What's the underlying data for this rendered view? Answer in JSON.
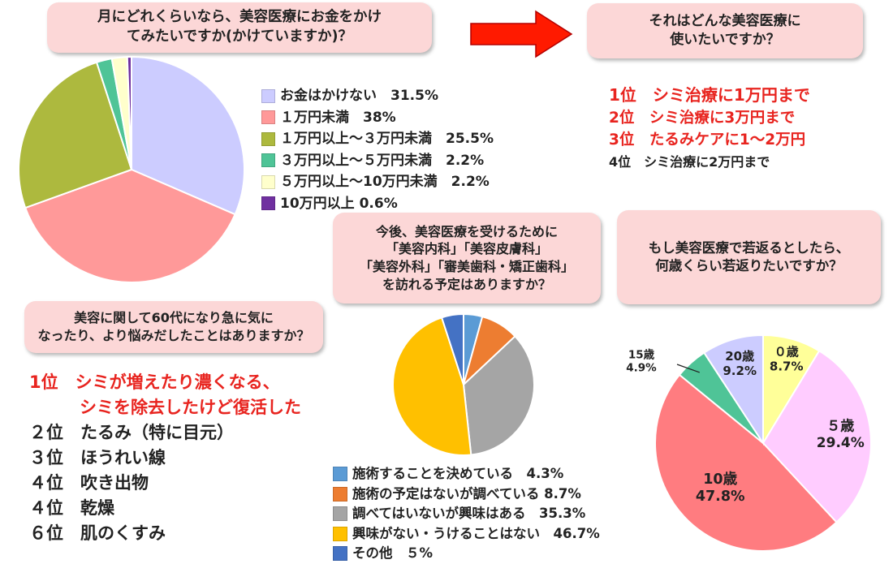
{
  "q1": {
    "question": "月にどれくらいなら、美容医療にお金をかけ\nてみたいですか(かけていますか)？"
  },
  "q2": {
    "question": "それはどんな美容医療に\n使いたいですか？",
    "ranks": [
      {
        "text": "1位　シミ治療に1万円まで",
        "color": "#e8241f"
      },
      {
        "text": "2位　シミ治療に3万円まで",
        "color": "#e8241f"
      },
      {
        "text": "3位　たるみケアに1～2万円",
        "color": "#e8241f"
      },
      {
        "text": "4位　シミ治療に2万円まで",
        "color": "#222222"
      }
    ]
  },
  "q3": {
    "question": "美容に関して60代になり急に気に\nなったり、より悩みだしたことはありますか？",
    "ranks": [
      {
        "text": "1位　シミが増えたり濃くなる、",
        "color": "#e8241f"
      },
      {
        "text": "シミを除去したけど復活した",
        "color": "#e8241f"
      },
      {
        "text": "２位　たるみ（特に目元）",
        "color": "#222222"
      },
      {
        "text": "３位　ほうれい線",
        "color": "#222222"
      },
      {
        "text": "４位　吹き出物",
        "color": "#222222"
      },
      {
        "text": "４位　乾燥",
        "color": "#222222"
      },
      {
        "text": "６位　肌のくすみ",
        "color": "#222222"
      }
    ]
  },
  "q4": {
    "question": "今後、美容医療を受けるために\n「美容内科」「美容皮膚科」\n「美容外科」「審美歯科・矯正歯科」\nを訪れる予定はありますか？"
  },
  "q5": {
    "question": "もし美容医療で若返るとしたら、\n何歳くらい若返りたいですか？"
  },
  "chart_data": [
    {
      "type": "pie",
      "title": "",
      "legend_position": "right",
      "slices": [
        {
          "label": "お金はかけない　31.5%",
          "value": 31.5,
          "color": "#ccccff"
        },
        {
          "label": "１万円未満　38%",
          "value": 38,
          "color": "#ff9999"
        },
        {
          "label": "１万円以上～３万円未満　25.5%",
          "value": 25.5,
          "color": "#adb93e"
        },
        {
          "label": "３万円以上～５万円未満　2.2%",
          "value": 2.2,
          "color": "#4fc497"
        },
        {
          "label": "５万円以上～10万円未満　2.2%",
          "value": 2.2,
          "color": "#ffffcc"
        },
        {
          "label": "10万円以上 0.6%",
          "value": 0.6,
          "color": "#7030a0"
        }
      ]
    },
    {
      "type": "pie",
      "title": "",
      "legend_position": "bottom",
      "slices": [
        {
          "label": "施術することを決めている　4.3%",
          "value": 4.3,
          "color": "#5b9bd5"
        },
        {
          "label": "施術の予定はないが調べている 8.7%",
          "value": 8.7,
          "color": "#ed7d31"
        },
        {
          "label": "調べてはいないが興味はある　35.3%",
          "value": 35.3,
          "color": "#a5a5a5"
        },
        {
          "label": "興味がない・うけることはない　46.7%",
          "value": 46.7,
          "color": "#ffc000"
        },
        {
          "label": "その他　５%",
          "value": 5,
          "color": "#4472c4"
        }
      ]
    },
    {
      "type": "pie",
      "title": "",
      "legend_position": "none",
      "slices": [
        {
          "name": "０歳",
          "pct": "8.7%",
          "value": 8.7,
          "color": "#ffff99"
        },
        {
          "name": "５歳",
          "pct": "29.4%",
          "value": 29.4,
          "color": "#ffccff"
        },
        {
          "name": "10歳",
          "pct": "47.8%",
          "value": 47.8,
          "color": "#ff7c80"
        },
        {
          "name": "15歳",
          "pct": "4.9%",
          "value": 4.9,
          "color": "#4fc497"
        },
        {
          "name": "20歳",
          "pct": "9.2%",
          "value": 9.2,
          "color": "#ccccff"
        }
      ]
    }
  ]
}
